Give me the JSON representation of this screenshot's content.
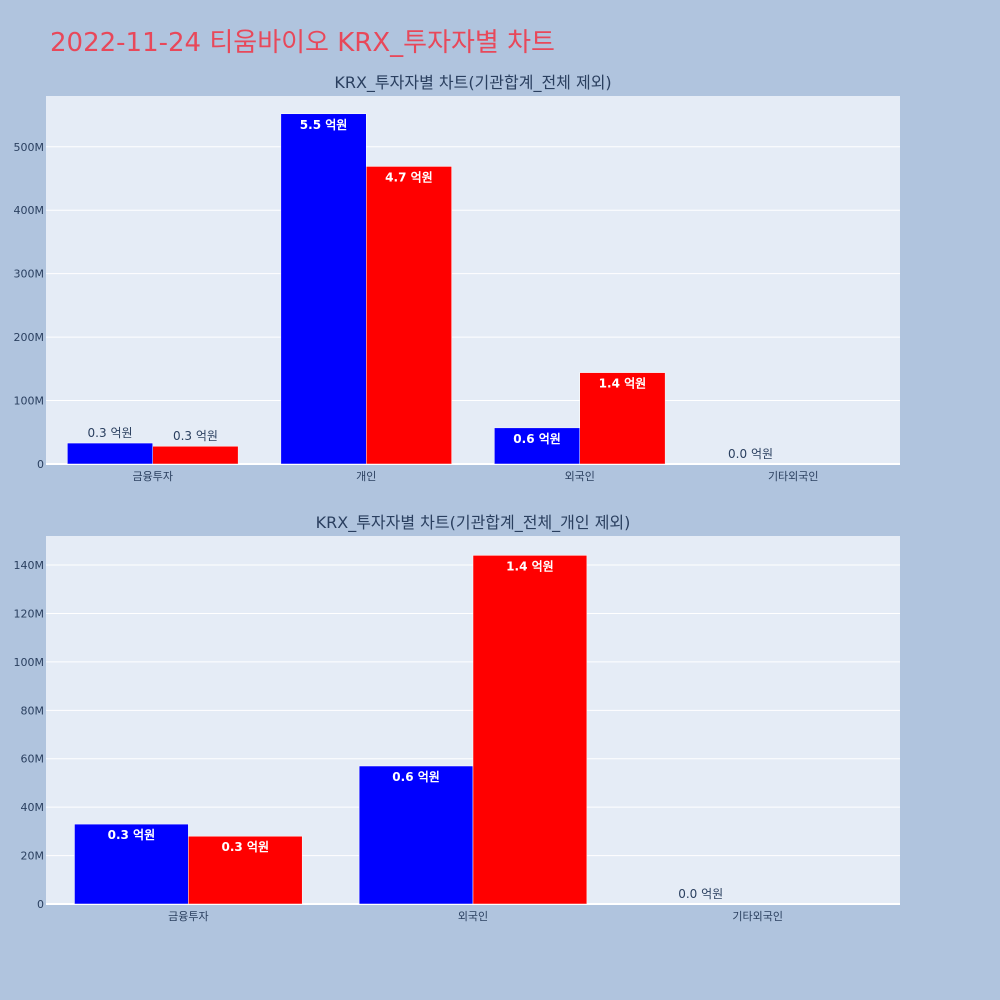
{
  "page": {
    "title": "2022-11-24 티움바이오 KRX_투자자별 차트",
    "background": "#b0c4de",
    "title_color": "#e8485a"
  },
  "chart_data": [
    {
      "type": "bar",
      "title": "KRX_투자자별 차트(기관합계_전체 제외)",
      "categories": [
        "금융투자",
        "개인",
        "외국인",
        "기타외국인"
      ],
      "series": [
        {
          "color": "#0000ff",
          "values": [
            33000000,
            552000000,
            57000000,
            0
          ],
          "labels": [
            "0.3 억원",
            "5.5 억원",
            "0.6 억원",
            "0.0 억원"
          ]
        },
        {
          "color": "#ff0000",
          "values": [
            28000000,
            469000000,
            144000000,
            0
          ],
          "labels": [
            "0.3 억원",
            "4.7 억원",
            "1.4 억원",
            ""
          ]
        }
      ],
      "ylim": [
        0,
        580000000
      ],
      "yticks": [
        0,
        100000000,
        200000000,
        300000000,
        400000000,
        500000000
      ],
      "ytick_labels": [
        "0",
        "100M",
        "200M",
        "300M",
        "400M",
        "500M"
      ],
      "grid": true
    },
    {
      "type": "bar",
      "title": "KRX_투자자별 차트(기관합계_전체_개인 제외)",
      "categories": [
        "금융투자",
        "외국인",
        "기타외국인"
      ],
      "series": [
        {
          "color": "#0000ff",
          "values": [
            33000000,
            57000000,
            0
          ],
          "labels": [
            "0.3 억원",
            "0.6 억원",
            "0.0 억원"
          ]
        },
        {
          "color": "#ff0000",
          "values": [
            28000000,
            144000000,
            0
          ],
          "labels": [
            "0.3 억원",
            "1.4 억원",
            ""
          ]
        }
      ],
      "ylim": [
        0,
        152000000
      ],
      "yticks": [
        0,
        20000000,
        40000000,
        60000000,
        80000000,
        100000000,
        120000000,
        140000000
      ],
      "ytick_labels": [
        "0",
        "20M",
        "40M",
        "60M",
        "80M",
        "100M",
        "120M",
        "140M"
      ],
      "grid": true
    }
  ]
}
